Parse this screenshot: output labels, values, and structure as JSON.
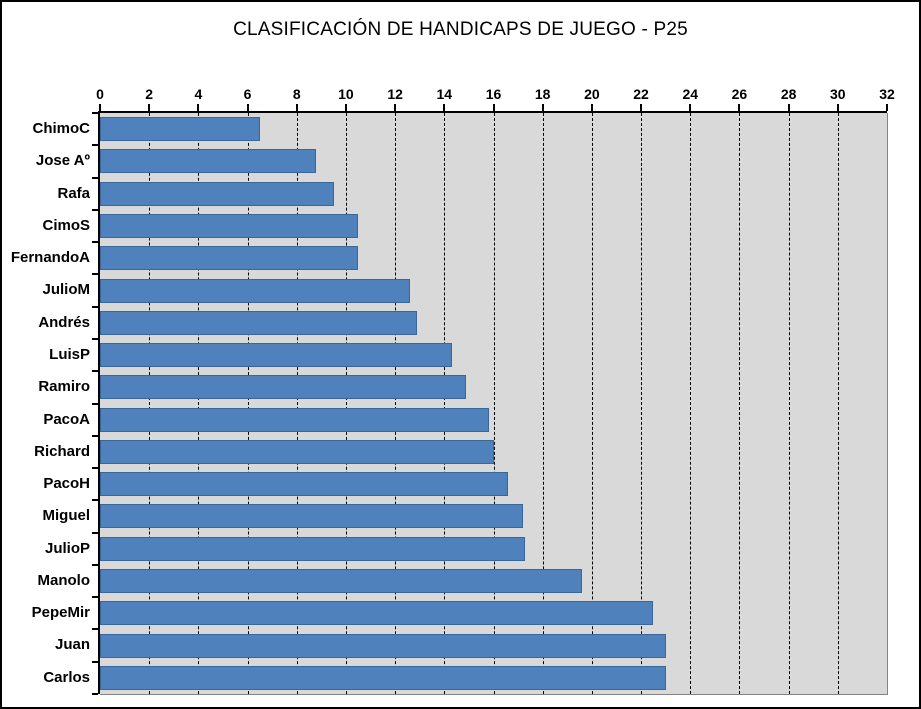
{
  "chart_data": {
    "type": "bar",
    "orientation": "horizontal",
    "title": "CLASIFICACIÓN DE HANDICAPS DE JUEGO - P25",
    "categories": [
      "ChimoC",
      "Jose Aº",
      "Rafa",
      "CimoS",
      "FernandoA",
      "JulioM",
      "Andrés",
      "LuisP",
      "Ramiro",
      "PacoA",
      "Richard",
      "PacoH",
      "Miguel",
      "JulioP",
      "Manolo",
      "PepeMir",
      "Juan",
      "Carlos"
    ],
    "values": [
      6.5,
      8.8,
      9.5,
      10.5,
      10.5,
      12.6,
      12.9,
      14.3,
      14.9,
      15.8,
      16.0,
      16.6,
      17.2,
      17.3,
      19.6,
      22.5,
      23.0,
      23.0
    ],
    "xlabel": "",
    "ylabel": "",
    "xlim": [
      0,
      32
    ],
    "xticks": [
      0,
      2,
      4,
      6,
      8,
      10,
      12,
      14,
      16,
      18,
      20,
      22,
      24,
      26,
      28,
      30,
      32
    ],
    "grid": "vertical-dashed",
    "legend": "none",
    "colors": {
      "bar_fill": "#4F81BD",
      "bar_border": "#3A6799",
      "plot_background": "#D9D9D9",
      "plot_border": "#848484",
      "gridline": "#000000",
      "axis_line": "#000000",
      "text": "#000000"
    }
  }
}
